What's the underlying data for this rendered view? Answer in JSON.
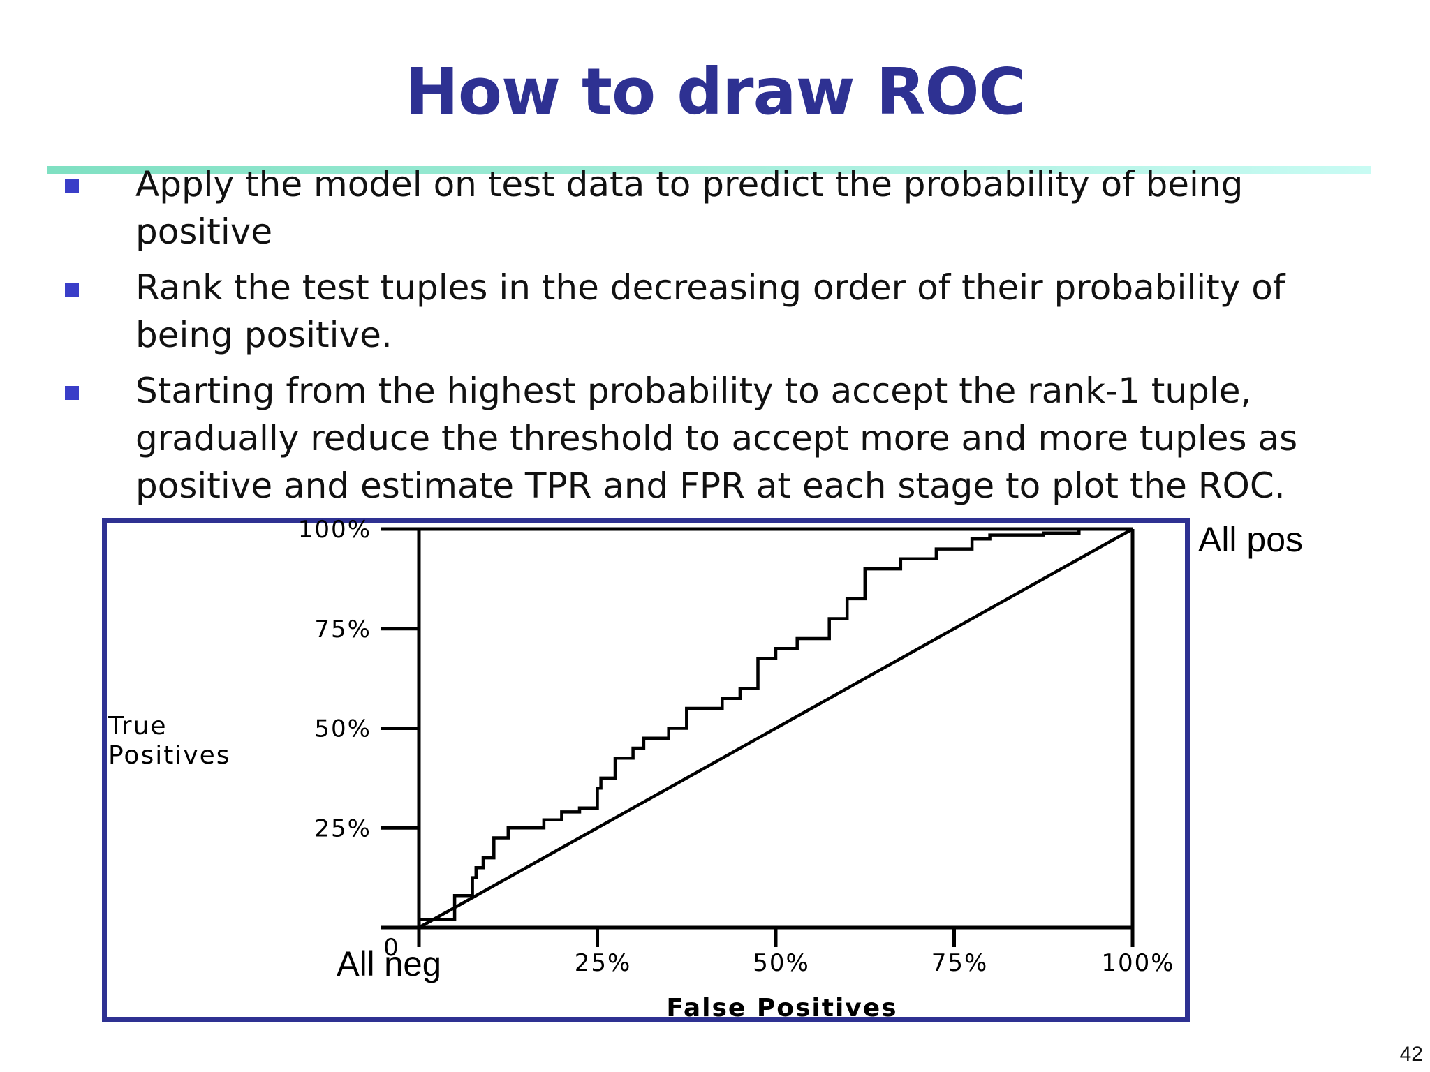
{
  "slide": {
    "title": "How to draw ROC",
    "bullets": [
      "Apply the model on test data to predict the probability of being positive",
      "Rank the test tuples in the decreasing order of their probability of being positive.",
      "Starting from the highest probability to accept the rank-1 tuple, gradually reduce the threshold to accept more and more tuples as positive and estimate TPR and FPR at each stage to plot the ROC."
    ],
    "page_number": "42"
  },
  "colors": {
    "title": "#2e3192",
    "frame": "#2e3192",
    "bullet_marker": "#3a3ec8",
    "curve": "#000000"
  },
  "chart_data": {
    "type": "line",
    "title": "",
    "xlabel": "False Positives",
    "ylabel": "True Positives",
    "xlim": [
      0,
      100
    ],
    "ylim": [
      0,
      100
    ],
    "x_ticks": [
      0,
      25,
      50,
      75,
      100
    ],
    "y_ticks": [
      0,
      25,
      50,
      75,
      100
    ],
    "x_tick_labels": [
      "0",
      "25%",
      "50%",
      "75%",
      "100%"
    ],
    "y_tick_labels": [
      "0",
      "25%",
      "50%",
      "75%",
      "100%"
    ],
    "annotations": [
      {
        "text": "All neg",
        "x": 0,
        "y": 0
      },
      {
        "text": "All pos",
        "x": 100,
        "y": 100
      }
    ],
    "grid": false,
    "series": [
      {
        "style": "step",
        "x": [
          0,
          5,
          5,
          7.5,
          7.5,
          8,
          8,
          9,
          9,
          10.5,
          10.5,
          12.5,
          12.5,
          17.5,
          17.5,
          20,
          20,
          22.5,
          22.5,
          25,
          25,
          25.5,
          25.5,
          27.5,
          27.5,
          30,
          30,
          31.5,
          31.5,
          35,
          35,
          37.5,
          37.5,
          42.5,
          42.5,
          45,
          45,
          47.5,
          47.5,
          50,
          50,
          53,
          53,
          57.5,
          57.5,
          60,
          60,
          62.5,
          62.5,
          67.5,
          67.5,
          72.5,
          72.5,
          77.5,
          77.5,
          80,
          80,
          87.5,
          87.5,
          92.5,
          92.5,
          100
        ],
        "y": [
          2,
          2,
          8,
          8,
          12.5,
          12.5,
          15,
          15,
          17.5,
          17.5,
          22.5,
          22.5,
          25,
          25,
          27,
          27,
          29,
          29,
          30,
          30,
          35,
          35,
          37.5,
          37.5,
          42.5,
          42.5,
          45,
          45,
          47.5,
          47.5,
          50,
          50,
          55,
          55,
          57.5,
          57.5,
          60,
          60,
          67.5,
          67.5,
          70,
          70,
          72.5,
          72.5,
          77.5,
          77.5,
          82.5,
          82.5,
          90,
          90,
          92.5,
          92.5,
          95,
          95,
          97.5,
          97.5,
          98.5,
          98.5,
          99,
          99,
          100,
          100
        ]
      },
      {
        "style": "diagonal",
        "x": [
          0,
          100
        ],
        "y": [
          0,
          100
        ]
      }
    ]
  }
}
